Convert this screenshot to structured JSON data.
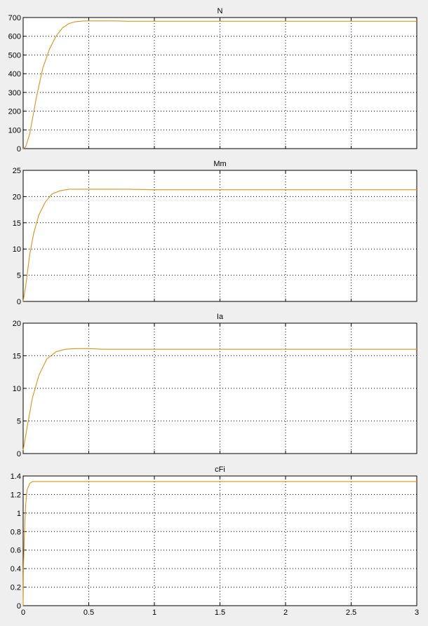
{
  "line_color": "#e0901e",
  "chart_data": [
    {
      "type": "line",
      "title": "N",
      "xlim": [
        0,
        3
      ],
      "ylim": [
        0,
        700
      ],
      "grid": true,
      "xticks": [
        0,
        0.5,
        1,
        1.5,
        2,
        2.5,
        3
      ],
      "show_xtick_labels": false,
      "yticks": [
        0,
        100,
        200,
        300,
        400,
        500,
        600,
        700
      ],
      "x": [
        0,
        0.02,
        0.05,
        0.1,
        0.15,
        0.2,
        0.25,
        0.3,
        0.35,
        0.4,
        0.45,
        0.5,
        0.7,
        0.8,
        3
      ],
      "y": [
        0,
        10,
        80,
        270,
        430,
        530,
        600,
        645,
        668,
        678,
        681,
        682,
        682,
        680,
        680
      ]
    },
    {
      "type": "line",
      "title": "Mm",
      "xlim": [
        0,
        3
      ],
      "ylim": [
        0,
        25
      ],
      "grid": true,
      "xticks": [
        0,
        0.5,
        1,
        1.5,
        2,
        2.5,
        3
      ],
      "show_xtick_labels": false,
      "yticks": [
        0,
        5,
        10,
        15,
        20,
        25
      ],
      "x": [
        0,
        0.02,
        0.05,
        0.08,
        0.12,
        0.17,
        0.22,
        0.28,
        0.35,
        0.5,
        0.8,
        1,
        3
      ],
      "y": [
        0,
        3,
        9,
        13,
        16.5,
        19,
        20.5,
        21.1,
        21.4,
        21.4,
        21.4,
        21.3,
        21.3
      ]
    },
    {
      "type": "line",
      "title": "Ia",
      "xlim": [
        0,
        3
      ],
      "ylim": [
        0,
        20
      ],
      "grid": true,
      "xticks": [
        0,
        0.5,
        1,
        1.5,
        2,
        2.5,
        3
      ],
      "show_xtick_labels": false,
      "yticks": [
        0,
        5,
        10,
        15,
        20
      ],
      "x": [
        0,
        0.03,
        0.07,
        0.12,
        0.18,
        0.25,
        0.32,
        0.4,
        0.5,
        0.6,
        3
      ],
      "y": [
        0.5,
        4,
        8.5,
        12,
        14.5,
        15.6,
        16,
        16.1,
        16.1,
        16,
        16
      ]
    },
    {
      "type": "line",
      "title": "cFi",
      "xlim": [
        0,
        3
      ],
      "ylim": [
        0,
        1.4
      ],
      "grid": true,
      "xticks": [
        0,
        0.5,
        1,
        1.5,
        2,
        2.5,
        3
      ],
      "show_xtick_labels": true,
      "yticks": [
        0,
        0.2,
        0.4,
        0.6,
        0.8,
        1,
        1.2,
        1.4
      ],
      "x": [
        0,
        0.002,
        0.01,
        0.02,
        0.03,
        0.05,
        0.07,
        3
      ],
      "y": [
        0,
        0.4,
        0.8,
        1.1,
        1.25,
        1.32,
        1.34,
        1.34
      ]
    }
  ]
}
